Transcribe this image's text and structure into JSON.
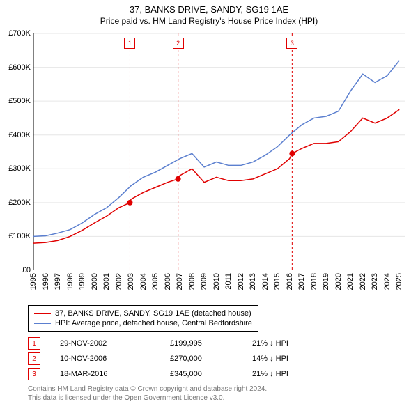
{
  "title": "37, BANKS DRIVE, SANDY, SG19 1AE",
  "subtitle": "Price paid vs. HM Land Registry's House Price Index (HPI)",
  "chart": {
    "type": "line",
    "background_color": "#ffffff",
    "grid_color": "#e6e6e6",
    "axis_color": "#000000",
    "marker_vline_color": "#e00000",
    "marker_vline_dash": "3,3",
    "series": [
      {
        "name": "price_paid",
        "label": "37, BANKS DRIVE, SANDY, SG19 1AE (detached house)",
        "color": "#e00000",
        "line_width": 1.5,
        "x": [
          1995,
          1996,
          1997,
          1998,
          1999,
          2000,
          2001,
          2002,
          2002.91,
          2003,
          2004,
          2005,
          2006,
          2006.86,
          2007,
          2008,
          2009,
          2010,
          2011,
          2012,
          2013,
          2014,
          2015,
          2016,
          2016.21,
          2017,
          2018,
          2019,
          2020,
          2021,
          2022,
          2023,
          2024,
          2025
        ],
        "y": [
          80,
          82,
          88,
          100,
          118,
          140,
          160,
          185,
          200,
          210,
          230,
          245,
          260,
          270,
          280,
          300,
          260,
          275,
          265,
          265,
          270,
          285,
          300,
          330,
          345,
          360,
          375,
          375,
          380,
          410,
          450,
          435,
          450,
          475
        ]
      },
      {
        "name": "hpi",
        "label": "HPI: Average price, detached house, Central Bedfordshire",
        "color": "#5b7fcf",
        "line_width": 1.5,
        "x": [
          1995,
          1996,
          1997,
          1998,
          1999,
          2000,
          2001,
          2002,
          2003,
          2004,
          2005,
          2006,
          2007,
          2008,
          2009,
          2010,
          2011,
          2012,
          2013,
          2014,
          2015,
          2016,
          2017,
          2018,
          2019,
          2020,
          2021,
          2022,
          2023,
          2024,
          2025
        ],
        "y": [
          100,
          102,
          110,
          120,
          140,
          165,
          185,
          215,
          250,
          275,
          290,
          310,
          330,
          345,
          305,
          320,
          310,
          310,
          320,
          340,
          365,
          400,
          430,
          450,
          455,
          470,
          530,
          580,
          555,
          575,
          620
        ]
      }
    ],
    "sale_markers": [
      {
        "n": 1,
        "x": 2002.91,
        "y": 200
      },
      {
        "n": 2,
        "x": 2006.86,
        "y": 270
      },
      {
        "n": 3,
        "x": 2016.21,
        "y": 345
      }
    ],
    "xlim": [
      1995,
      2025.5
    ],
    "ylim": [
      0,
      700
    ],
    "yticks": [
      0,
      100,
      200,
      300,
      400,
      500,
      600,
      700
    ],
    "ytick_labels": [
      "£0",
      "£100K",
      "£200K",
      "£300K",
      "£400K",
      "£500K",
      "£600K",
      "£700K"
    ],
    "xticks": [
      1995,
      1996,
      1997,
      1998,
      1999,
      2000,
      2001,
      2002,
      2003,
      2004,
      2005,
      2006,
      2007,
      2008,
      2009,
      2010,
      2011,
      2012,
      2013,
      2014,
      2015,
      2016,
      2017,
      2018,
      2019,
      2020,
      2021,
      2022,
      2023,
      2024,
      2025
    ],
    "label_fontsize": 11,
    "sale_point_color": "#e00000",
    "sale_point_radius": 4
  },
  "legend": {
    "items": [
      {
        "color": "#e00000",
        "label": "37, BANKS DRIVE, SANDY, SG19 1AE (detached house)"
      },
      {
        "color": "#5b7fcf",
        "label": "HPI: Average price, detached house, Central Bedfordshire"
      }
    ]
  },
  "markers_table": [
    {
      "n": "1",
      "date": "29-NOV-2002",
      "price": "£199,995",
      "delta": "21% ↓ HPI"
    },
    {
      "n": "2",
      "date": "10-NOV-2006",
      "price": "£270,000",
      "delta": "14% ↓ HPI"
    },
    {
      "n": "3",
      "date": "18-MAR-2016",
      "price": "£345,000",
      "delta": "21% ↓ HPI"
    }
  ],
  "footer": {
    "line1": "Contains HM Land Registry data © Crown copyright and database right 2024.",
    "line2": "This data is licensed under the Open Government Licence v3.0."
  }
}
